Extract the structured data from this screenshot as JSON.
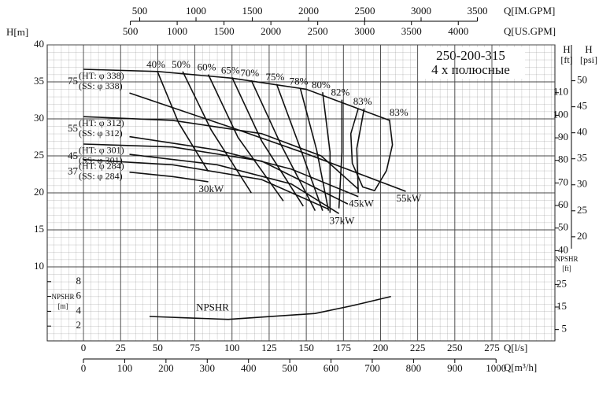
{
  "chart_data": {
    "type": "line",
    "title": "250-200-315",
    "subtitle": "4 х полюсные",
    "xlabel": "Q[l/s]",
    "xlim": [
      -24.4,
      317.4
    ],
    "xticks": [
      0,
      25,
      50,
      75,
      100,
      125,
      150,
      175,
      200,
      225,
      250,
      275
    ],
    "ylabel": "H[m]",
    "ylim": [
      0,
      40
    ],
    "yticks": [
      10,
      15,
      20,
      25,
      30,
      35,
      40
    ],
    "grid": true,
    "color": "#000000",
    "x_m3h": {
      "label": "Q[m³/h]",
      "lim": [
        -87.8,
        1142.6
      ],
      "ticks": [
        0,
        100,
        200,
        300,
        400,
        500,
        600,
        700,
        800,
        900,
        1000
      ]
    },
    "x_usgpm": {
      "label": "Q[US.GPM]",
      "lim": [
        -386.7,
        5031
      ],
      "ticks": [
        500,
        1000,
        1500,
        2000,
        2500,
        3000,
        3500,
        4000
      ]
    },
    "x_imgpm": {
      "label": "Q[IM.GPM]",
      "lim": [
        -322,
        4189
      ],
      "ticks": [
        500,
        1000,
        1500,
        2000,
        2500,
        3000,
        3500
      ]
    },
    "y_ft": {
      "label": "H",
      "unit": "[ft]",
      "lim": [
        0,
        131.2
      ],
      "ticks": [
        40,
        50,
        60,
        70,
        80,
        90,
        100,
        110
      ]
    },
    "y_psi": {
      "label": "H",
      "unit": "[psi]",
      "lim": [
        0,
        56.9
      ],
      "ticks": [
        20,
        25,
        30,
        35,
        40,
        45,
        50
      ]
    },
    "npshr_m": {
      "label": "NPSHR",
      "unit": "[m]",
      "ticks": [
        2,
        4,
        6,
        8
      ]
    },
    "npshr_ft": {
      "label": "NPSHR",
      "unit": "[ft]",
      "ticks": [
        5,
        15,
        25
      ]
    },
    "diameters": [
      {
        "power": "75",
        "curves": [
          {
            "name": "(HT: φ 338)",
            "x": [
              0,
              50,
              100,
              150,
              206
            ],
            "values": [
              36.7,
              36.4,
              35.5,
              34,
              29.8
            ]
          },
          {
            "name": "(SS: φ 338)",
            "x": [
              31,
              100,
              150,
              217
            ],
            "values": [
              33.5,
              28.8,
              25.3,
              20.2
            ],
            "end_label": "55kW"
          }
        ]
      },
      {
        "power": "55",
        "curves": [
          {
            "name": "(HT: φ 312)",
            "x": [
              0,
              60,
              120,
              160,
              185
            ],
            "values": [
              30.3,
              29.8,
              28,
              25,
              20.5
            ]
          },
          {
            "name": "(SS: φ 312)",
            "x": [
              31,
              90,
              140,
              185
            ],
            "values": [
              27.6,
              25.8,
              23.2,
              19.5
            ],
            "end_label": "45kW"
          }
        ]
      },
      {
        "power": "45",
        "curves": [
          {
            "name": "(HT: φ 301)",
            "x": [
              0,
              60,
              120,
              178
            ],
            "values": [
              26.6,
              26.2,
              24.3,
              18.5
            ]
          },
          {
            "name": "(SS: φ 301)",
            "x": [
              31,
              90,
              140,
              172
            ],
            "values": [
              25.2,
              23.8,
              21.2,
              17.2
            ],
            "end_label": "37kW"
          }
        ]
      },
      {
        "power": "37",
        "curves": [
          {
            "name": "(HT: φ 284)",
            "x": [
              0,
              60,
              120,
              165
            ],
            "values": [
              24.5,
              23.8,
              21.8,
              17.8
            ]
          },
          {
            "name": "(SS: φ 284)",
            "x": [
              31,
              60,
              84
            ],
            "values": [
              22.8,
              22.2,
              21.5
            ],
            "end_label": "30kW"
          }
        ]
      }
    ],
    "efficiency": [
      {
        "label": "40%",
        "x": [
          49.8,
          64,
          84
        ],
        "values": [
          36.4,
          29.5,
          22.9
        ]
      },
      {
        "label": "50%",
        "x": [
          66.8,
          86,
          113
        ],
        "values": [
          36.4,
          28.5,
          20
        ]
      },
      {
        "label": "60%",
        "x": [
          84,
          104,
          134.6
        ],
        "values": [
          36,
          27.5,
          18.9
        ]
      },
      {
        "label": "65%",
        "x": [
          100,
          120,
          148
        ],
        "values": [
          35.6,
          27,
          18.2
        ]
      },
      {
        "label": "70%",
        "x": [
          113,
          133,
          156
        ],
        "values": [
          35.2,
          26.5,
          17.6
        ]
      },
      {
        "label": "75%",
        "x": [
          130,
          146,
          161
        ],
        "values": [
          34.7,
          26,
          17.6
        ]
      },
      {
        "label": "78%",
        "x": [
          146,
          157,
          165
        ],
        "values": [
          34.1,
          25.8,
          17.6
        ]
      },
      {
        "label": "80%",
        "x": [
          161,
          166,
          166
        ],
        "values": [
          33.6,
          25.5,
          17.3
        ]
      },
      {
        "label": "82%",
        "x": [
          174,
          174,
          172
        ],
        "values": [
          32.6,
          25.5,
          17.9
        ]
      },
      {
        "label": "83%",
        "x": [
          189,
          184,
          185
        ],
        "values": [
          31.4,
          26,
          20
        ]
      },
      {
        "label": "83%",
        "x": [
          206,
          208,
          204,
          196,
          188,
          181,
          180,
          185
        ],
        "values": [
          29.9,
          26.5,
          23,
          20.3,
          20.8,
          24,
          28,
          31.4
        ]
      }
    ],
    "npshr": {
      "name": "NPSHR",
      "x": [
        44.5,
        97.5,
        156,
        182,
        207
      ],
      "values": [
        3.3,
        2.9,
        3.7,
        4.8,
        6.0
      ]
    }
  }
}
